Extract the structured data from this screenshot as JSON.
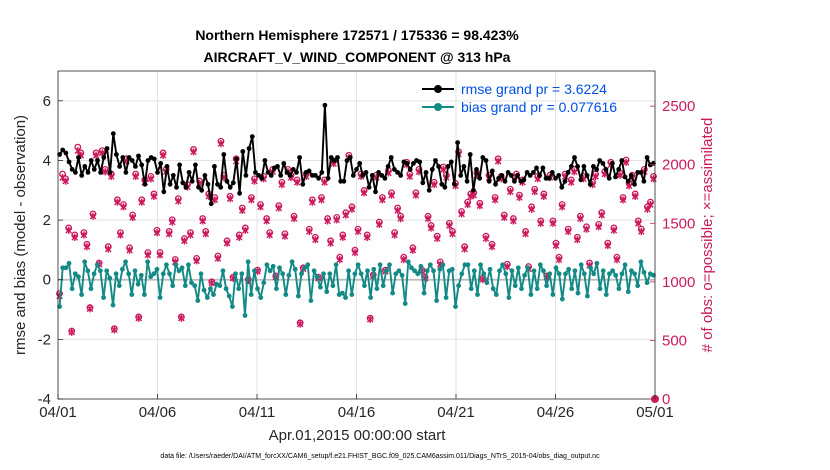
{
  "chart_data": {
    "type": "line",
    "title": "Northern Hemisphere 172571 / 175336 = 98.423%",
    "subtitle": "AIRCRAFT_V_WIND_COMPONENT @ 313 hPa",
    "xlabel": "Apr.01,2015 00:00:00 start",
    "ylabel": "rmse and bias (model - observation)",
    "y2label": "# of obs: o=possible; ×=assimilated",
    "footer": "data file: /Users/raeder/DAI/ATM_forcXX/CAM6_setup/f.e21.FHIST_BGC.f09_025.CAM6assim.011/Diags_NTrS_2015-04/obs_diag_output.nc",
    "xlim": [
      0,
      30
    ],
    "ylim": [
      -4,
      7
    ],
    "y2lim": [
      0,
      2800
    ],
    "x_tick_positions": [
      0,
      5,
      10,
      15,
      20,
      25,
      30
    ],
    "x_tick_labels": [
      "04/01",
      "04/06",
      "04/11",
      "04/16",
      "04/21",
      "04/26",
      "05/01"
    ],
    "y_ticks": [
      "-4",
      "-2",
      "0",
      "2",
      "4",
      "6"
    ],
    "y2_ticks": [
      "0",
      "500",
      "1000",
      "1500",
      "2000",
      "2500"
    ],
    "grid": true,
    "legend_position": "top-right",
    "colors": {
      "rmse": "#000000",
      "bias": "#138a86",
      "obs": "#cc1a5e",
      "zero_line": "#bbbbbb",
      "legend_text": "#0050e6"
    },
    "series": [
      {
        "name": "rmse grand pr = 3.6224",
        "axis": "left",
        "values": [
          4.2,
          4.35,
          4.25,
          3.95,
          3.7,
          3.6,
          4.1,
          3.5,
          3.8,
          3.6,
          4.0,
          3.7,
          4.0,
          3.6,
          4.1,
          4.4,
          3.6,
          4.9,
          4.2,
          3.8,
          4.1,
          3.6,
          4.1,
          4.0,
          3.8,
          4.15,
          3.85,
          3.2,
          4.0,
          4.1,
          4.05,
          3.6,
          3.9,
          2.95,
          3.8,
          3.2,
          3.5,
          3.1,
          3.85,
          3.25,
          3.1,
          3.6,
          3.3,
          3.85,
          3.1,
          3.0,
          3.5,
          3.2,
          2.55,
          3.8,
          3.2,
          3.1,
          4.2,
          3.3,
          3.1,
          3.25,
          4.05,
          2.9,
          4.3,
          3.5,
          4.4,
          4.8,
          3.6,
          3.5,
          3.4,
          4.0,
          3.6,
          3.5,
          3.75,
          3.8,
          3.5,
          3.9,
          3.6,
          3.5,
          3.7,
          3.6,
          4.1,
          3.2,
          3.6,
          3.65,
          3.5,
          3.5,
          3.4,
          3.6,
          5.85,
          3.4,
          4.1,
          4.0,
          4.1,
          3.3,
          3.3,
          4.0,
          4.1,
          3.5,
          3.7,
          3.9,
          3.5,
          3.6,
          3.1,
          3.5,
          2.95,
          3.6,
          3.5,
          3.4,
          3.8,
          4.1,
          3.7,
          3.6,
          3.5,
          3.95,
          3.9,
          3.7,
          3.9,
          4.0,
          3.95,
          3.25,
          3.6,
          3.0,
          3.7,
          4.0,
          3.8,
          3.2,
          3.1,
          3.8,
          3.95,
          3.2,
          4.6,
          3.5,
          3.8,
          3.3,
          4.2,
          3.0,
          3.7,
          3.4,
          4.1,
          4.0,
          3.3,
          3.65,
          3.2,
          3.4,
          3.5,
          3.3,
          3.6,
          3.5,
          3.3,
          3.5,
          3.3,
          3.35,
          3.6,
          3.5,
          3.6,
          3.75,
          3.5,
          3.75,
          3.4,
          3.4,
          3.6,
          3.4,
          3.5,
          3.1,
          3.3,
          3.6,
          3.8,
          4.1,
          3.8,
          3.35,
          3.8,
          3.5,
          3.2,
          3.8,
          3.7,
          4.0,
          3.9,
          3.7,
          3.4,
          3.9,
          3.45,
          3.7,
          4.0,
          3.45,
          3.3,
          3.5,
          3.2,
          3.6,
          3.6,
          3.3,
          4.1,
          3.85,
          3.9
        ]
      },
      {
        "name": "bias grand pr = 0.077616",
        "axis": "left",
        "values": [
          -0.9,
          0.4,
          0.4,
          0.55,
          -0.3,
          0.2,
          0.1,
          -0.5,
          0.6,
          0.3,
          -0.3,
          0.2,
          0.5,
          0.3,
          -0.6,
          0.3,
          0.05,
          -0.85,
          0.2,
          -0.2,
          0.35,
          0.6,
          0.2,
          -0.5,
          0.3,
          -0.15,
          0.15,
          -0.5,
          0.6,
          0.1,
          0.2,
          0.35,
          -0.6,
          0.2,
          0.5,
          0.2,
          -0.2,
          0.5,
          0.3,
          0.4,
          -0.2,
          0.5,
          -0.1,
          -0.2,
          -0.7,
          0.2,
          -0.35,
          -0.6,
          -0.3,
          -0.5,
          -0.15,
          -0.2,
          0.3,
          -0.3,
          -0.55,
          -0.9,
          0.2,
          -0.3,
          0.2,
          -1.2,
          0.6,
          -0.5,
          0.3,
          -0.3,
          -0.6,
          -0.1,
          0.5,
          0.3,
          0.45,
          -0.3,
          0.4,
          0.2,
          -0.5,
          0.15,
          0.6,
          0.35,
          -0.55,
          0.2,
          0.4,
          0.5,
          -0.7,
          0.3,
          0.1,
          -0.25,
          0.2,
          -0.4,
          0.2,
          -0.2,
          0.5,
          -0.5,
          -0.45,
          -0.6,
          0.3,
          -0.5,
          0.2,
          0.5,
          0.2,
          -0.2,
          0.3,
          -0.6,
          0.35,
          -0.3,
          0.5,
          -0.2,
          0.3,
          0.5,
          -0.45,
          0.2,
          0.3,
          0.15,
          -0.8,
          0.6,
          0.4,
          0.3,
          0.2,
          0.45,
          -0.45,
          0.3,
          0.5,
          0.3,
          -0.7,
          0.35,
          0.5,
          -0.6,
          0.3,
          0.35,
          -0.9,
          -0.2,
          0.2,
          0.5,
          0.5,
          -0.3,
          0.3,
          -0.5,
          0.5,
          0.2,
          -0.1,
          0.35,
          -0.3,
          -0.5,
          0.3,
          0.5,
          0.2,
          -0.6,
          0.3,
          -0.2,
          0.4,
          -0.3,
          0.15,
          0.4,
          -0.5,
          0.3,
          -0.3,
          0.5,
          0.3,
          -0.2,
          0.2,
          -0.5,
          0.4,
          0.2,
          -0.65,
          0.2,
          0.35,
          -0.3,
          0.3,
          -0.45,
          0.5,
          0.2,
          -0.55,
          0.4,
          0.2,
          0.55,
          -0.3,
          0.3,
          -0.5,
          0.2,
          0.3,
          0.15,
          -0.3,
          0.2,
          0.5,
          -0.4,
          0.3,
          0.2,
          -0.2,
          0.6,
          0.25,
          -0.1,
          0.2,
          0.15
        ]
      },
      {
        "name": "possible obs",
        "axis": "right",
        "marker": "o",
        "values": [
          900,
          1920,
          1880,
          1460,
          580,
          1400,
          2150,
          2100,
          1420,
          1320,
          780,
          1580,
          2100,
          1160,
          2120,
          1960,
          1300,
          1920,
          600,
          1700,
          1420,
          1660,
          2050,
          1290,
          1570,
          1920,
          700,
          1700,
          1870,
          1250,
          1900,
          1750,
          1440,
          1250,
          2100,
          1960,
          1430,
          1530,
          1190,
          1710,
          700,
          1370,
          1830,
          1420,
          2130,
          1200,
          1860,
          1540,
          1430,
          1750,
          1000,
          1720,
          1220,
          2200,
          1910,
          1350,
          1730,
          1040,
          2050,
          1400,
          1630,
          1460,
          1020,
          1720,
          1880,
          1100,
          1660,
          1900,
          1540,
          1420,
          1960,
          1050,
          1650,
          1850,
          1410,
          1960,
          1910,
          1560,
          1870,
          650,
          1120,
          1920,
          1450,
          1700,
          1380,
          1040,
          1720,
          1870,
          1540,
          1350,
          2030,
          1550,
          1210,
          1400,
          1590,
          2080,
          1640,
          1270,
          1450,
          1920,
          1780,
          1400,
          690,
          1060,
          1910,
          1510,
          1720,
          1100,
          1950,
          1760,
          1420,
          1630,
          1560,
          1210,
          2020,
          1920,
          1290,
          1760,
          1960,
          1100,
          1040,
          1560,
          1480,
          1850,
          1390,
          1170,
          1980,
          1910,
          1500,
          1430,
          1840,
          2110,
          1600,
          1300,
          1680,
          1750,
          1760,
          1930,
          1670,
          1030,
          1390,
          1910,
          1320,
          1720,
          2050,
          1900,
          1570,
          1150,
          1790,
          1540,
          1920,
          1740,
          1870,
          1430,
          1130,
          1640,
          1790,
          1900,
          1520,
          1750,
          1050,
          1910,
          1520,
          1330,
          1210,
          1660,
          1920,
          1450,
          1870,
          1960,
          1380,
          1560,
          1900,
          1470,
          1160,
          1850,
          1920,
          1490,
          1590,
          1940,
          1330,
          2020,
          1460,
          1210,
          1930,
          1720,
          2040,
          1840,
          1910,
          1750,
          1520,
          1450,
          1960,
          1640,
          1680,
          1900
        ]
      },
      {
        "name": "assimilated obs",
        "axis": "right",
        "marker": "x",
        "values": [
          880,
          1890,
          1860,
          1440,
          570,
          1380,
          2120,
          2080,
          1400,
          1300,
          770,
          1560,
          2080,
          1150,
          2100,
          1940,
          1280,
          1900,
          590,
          1680,
          1400,
          1640,
          2030,
          1270,
          1550,
          1900,
          690,
          1680,
          1850,
          1230,
          1880,
          1730,
          1420,
          1230,
          2080,
          1940,
          1410,
          1510,
          1170,
          1690,
          690,
          1350,
          1810,
          1400,
          2110,
          1180,
          1840,
          1520,
          1410,
          1730,
          990,
          1700,
          1200,
          2180,
          1890,
          1330,
          1710,
          1030,
          2030,
          1380,
          1610,
          1440,
          1010,
          1700,
          1860,
          1090,
          1640,
          1880,
          1520,
          1400,
          1940,
          1040,
          1630,
          1830,
          1390,
          1940,
          1890,
          1540,
          1850,
          640,
          1110,
          1900,
          1430,
          1680,
          1360,
          1030,
          1700,
          1850,
          1520,
          1330,
          2010,
          1530,
          1190,
          1380,
          1570,
          2060,
          1620,
          1250,
          1430,
          1900,
          1760,
          1380,
          680,
          1050,
          1890,
          1490,
          1700,
          1090,
          1930,
          1740,
          1400,
          1610,
          1540,
          1190,
          2000,
          1900,
          1270,
          1740,
          1940,
          1090,
          1030,
          1540,
          1460,
          1830,
          1370,
          1150,
          1960,
          1890,
          1480,
          1410,
          1820,
          2090,
          1580,
          1280,
          1660,
          1730,
          1740,
          1910,
          1650,
          1020,
          1370,
          1890,
          1300,
          1700,
          2030,
          1880,
          1550,
          1130,
          1770,
          1520,
          1900,
          1720,
          1850,
          1410,
          1110,
          1620,
          1770,
          1880,
          1500,
          1730,
          1040,
          1890,
          1500,
          1310,
          1190,
          1640,
          1900,
          1430,
          1850,
          1940,
          1360,
          1540,
          1880,
          1450,
          1140,
          1830,
          1900,
          1470,
          1570,
          1920,
          1310,
          2000,
          1440,
          1190,
          1910,
          1700,
          2020,
          1820,
          1890,
          1730,
          1500,
          1430,
          1940,
          1620,
          1660,
          1880
        ]
      }
    ]
  }
}
